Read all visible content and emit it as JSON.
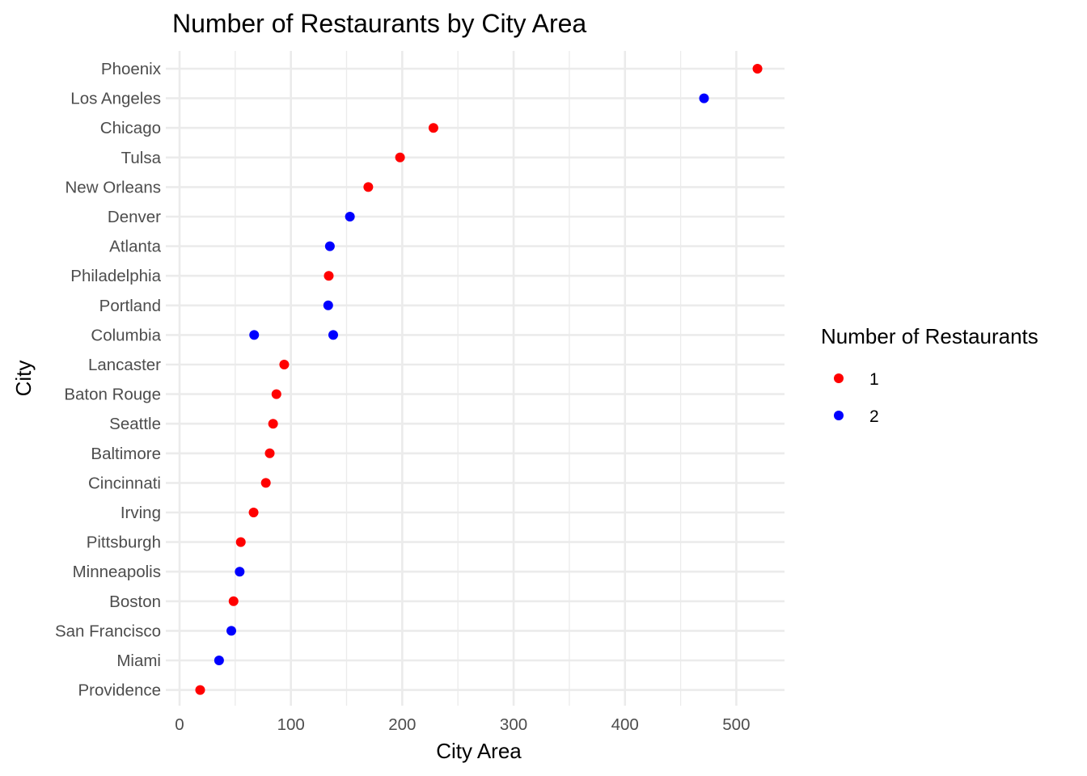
{
  "chart_data": {
    "type": "scatter",
    "title": "Number of Restaurants by City Area",
    "xlabel": "City Area",
    "ylabel": "City",
    "xlim": [
      -5,
      545
    ],
    "x_ticks": [
      0,
      100,
      200,
      300,
      400,
      500
    ],
    "x_tick_labels": [
      "0",
      "100",
      "200",
      "300",
      "400",
      "500"
    ],
    "grid": true,
    "legend": {
      "title": "Number of Restaurants",
      "placement": "right",
      "entries": [
        {
          "label": "1",
          "color": "#ff0000"
        },
        {
          "label": "2",
          "color": "#0000ff"
        }
      ]
    },
    "categories": [
      "Phoenix",
      "Los Angeles",
      "Chicago",
      "Tulsa",
      "New Orleans",
      "Denver",
      "Atlanta",
      "Philadelphia",
      "Portland",
      "Columbia",
      "Lancaster",
      "Baton Rouge",
      "Seattle",
      "Baltimore",
      "Cincinnati",
      "Irving",
      "Pittsburgh",
      "Minneapolis",
      "Boston",
      "San Francisco",
      "Miami",
      "Providence"
    ],
    "points": [
      {
        "city": "Phoenix",
        "x": 519,
        "group": "1"
      },
      {
        "city": "Los Angeles",
        "x": 471,
        "group": "2"
      },
      {
        "city": "Chicago",
        "x": 228,
        "group": "1"
      },
      {
        "city": "Tulsa",
        "x": 198,
        "group": "1"
      },
      {
        "city": "New Orleans",
        "x": 169.5,
        "group": "1"
      },
      {
        "city": "Denver",
        "x": 153,
        "group": "2"
      },
      {
        "city": "Atlanta",
        "x": 135,
        "group": "2"
      },
      {
        "city": "Philadelphia",
        "x": 134,
        "group": "1"
      },
      {
        "city": "Portland",
        "x": 133.5,
        "group": "2"
      },
      {
        "city": "Columbia",
        "x": 67,
        "group": "2"
      },
      {
        "city": "Columbia",
        "x": 138,
        "group": "2"
      },
      {
        "city": "Lancaster",
        "x": 94,
        "group": "1"
      },
      {
        "city": "Baton Rouge",
        "x": 87,
        "group": "1"
      },
      {
        "city": "Seattle",
        "x": 84,
        "group": "1"
      },
      {
        "city": "Baltimore",
        "x": 81,
        "group": "1"
      },
      {
        "city": "Cincinnati",
        "x": 77.5,
        "group": "1"
      },
      {
        "city": "Irving",
        "x": 66.5,
        "group": "1"
      },
      {
        "city": "Pittsburgh",
        "x": 55,
        "group": "1"
      },
      {
        "city": "Minneapolis",
        "x": 54,
        "group": "2"
      },
      {
        "city": "Boston",
        "x": 48.5,
        "group": "1"
      },
      {
        "city": "San Francisco",
        "x": 46.5,
        "group": "2"
      },
      {
        "city": "Miami",
        "x": 35.5,
        "group": "2"
      },
      {
        "city": "Providence",
        "x": 18.5,
        "group": "1"
      }
    ]
  }
}
